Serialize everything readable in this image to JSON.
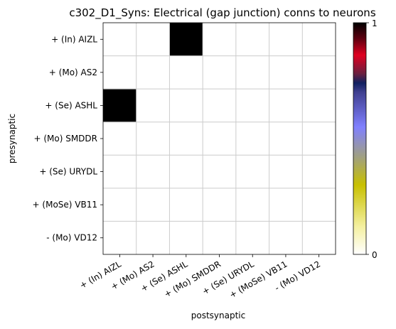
{
  "chart_data": {
    "type": "heatmap",
    "title": "c302_D1_Syns: Electrical (gap junction) conns to neurons",
    "xlabel": "postsynaptic",
    "ylabel": "presynaptic",
    "x_categories": [
      "+ (In) AIZL",
      "+ (Mo) AS2",
      "+ (Se) ASHL",
      "+ (Mo) SMDDR",
      "+ (Se) URYDL",
      "+ (MoSe) VB11",
      "- (Mo) VD12"
    ],
    "y_categories": [
      "+ (In) AIZL",
      "+ (Mo) AS2",
      "+ (Se) ASHL",
      "+ (Mo) SMDDR",
      "+ (Se) URYDL",
      "+ (MoSe) VB11",
      "- (Mo) VD12"
    ],
    "values": [
      [
        0,
        0,
        1,
        0,
        0,
        0,
        0
      ],
      [
        0,
        0,
        0,
        0,
        0,
        0,
        0
      ],
      [
        1,
        0,
        0,
        0,
        0,
        0,
        0
      ],
      [
        0,
        0,
        0,
        0,
        0,
        0,
        0
      ],
      [
        0,
        0,
        0,
        0,
        0,
        0,
        0
      ],
      [
        0,
        0,
        0,
        0,
        0,
        0,
        0
      ],
      [
        0,
        0,
        0,
        0,
        0,
        0,
        0
      ]
    ],
    "colorbar": {
      "min": 0,
      "max": 1,
      "tick_labels": [
        "0",
        "1"
      ],
      "colors": [
        "#ffffff",
        "#c8c000",
        "#8080ff",
        "#1a1a6a",
        "#e00020",
        "#000000"
      ]
    },
    "grid": true
  }
}
